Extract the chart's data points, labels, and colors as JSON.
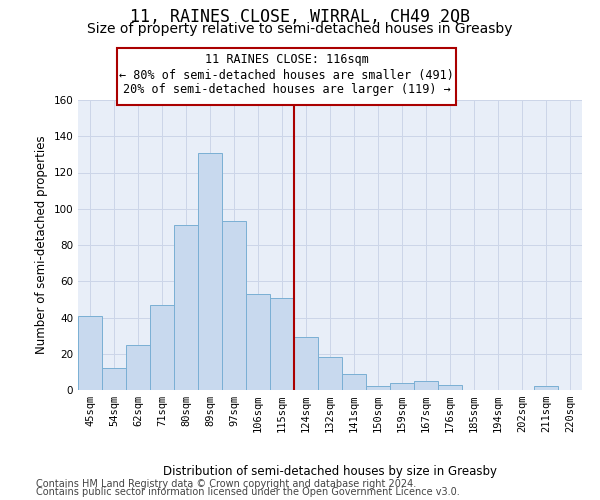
{
  "title": "11, RAINES CLOSE, WIRRAL, CH49 2QB",
  "subtitle": "Size of property relative to semi-detached houses in Greasby",
  "xlabel": "Distribution of semi-detached houses by size in Greasby",
  "ylabel": "Number of semi-detached properties",
  "categories": [
    "45sqm",
    "54sqm",
    "62sqm",
    "71sqm",
    "80sqm",
    "89sqm",
    "97sqm",
    "106sqm",
    "115sqm",
    "124sqm",
    "132sqm",
    "141sqm",
    "150sqm",
    "159sqm",
    "167sqm",
    "176sqm",
    "185sqm",
    "194sqm",
    "202sqm",
    "211sqm",
    "220sqm"
  ],
  "values": [
    41,
    12,
    25,
    47,
    91,
    131,
    93,
    53,
    51,
    29,
    18,
    9,
    2,
    4,
    5,
    3,
    0,
    0,
    0,
    2,
    0
  ],
  "bar_color": "#c8d9ee",
  "bar_edge_color": "#7aafd4",
  "highlight_line_index": 8.5,
  "highlight_label": "11 RAINES CLOSE: 116sqm",
  "pct_larger": "20% of semi-detached houses are larger (119) →",
  "pct_smaller_arrow": "← 80% of semi-detached houses are smaller (491)",
  "box_color": "#aa0000",
  "grid_color": "#ccd5e8",
  "background_color": "#e8eef8",
  "ylim": [
    0,
    160
  ],
  "yticks": [
    0,
    20,
    40,
    60,
    80,
    100,
    120,
    140,
    160
  ],
  "footer1": "Contains HM Land Registry data © Crown copyright and database right 2024.",
  "footer2": "Contains public sector information licensed under the Open Government Licence v3.0.",
  "title_fontsize": 12,
  "subtitle_fontsize": 10,
  "axis_label_fontsize": 8.5,
  "tick_fontsize": 7.5,
  "footer_fontsize": 7,
  "legend_fontsize": 8.5
}
